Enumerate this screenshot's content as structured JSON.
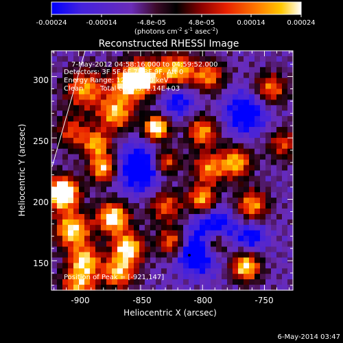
{
  "colorbar": {
    "tick_labels": [
      "-0.00024",
      "-0.00014",
      "-4.8e-05",
      "4.8e-05",
      "0.00014",
      "0.00024"
    ],
    "units_prefix": "(photons cm",
    "units_sup1": "-2",
    "units_mid": " s",
    "units_sup2": "-1",
    "units_suffix": " asec",
    "units_sup3": "-2",
    "units_close": ")"
  },
  "annotations": {
    "time_range": "7-May-2012 04:58:16.000 to 04:59:52.000",
    "detectors": "Detectors: 3F 5F 6F 7F 8F 9F, Att 0",
    "energy": "Energy Range: 12.0 - 25.0 keV",
    "method": "Clean",
    "counts": "Total counts: 1.14E+03",
    "peak": "Position of Peak = [-921,147]"
  },
  "footer": {
    "timestamp": "6-May-2014 03:47"
  },
  "chart_data": {
    "type": "heatmap",
    "title": "Reconstructed RHESSI Image",
    "xlabel": "Heliocentric X (arcsec)",
    "ylabel": "Heliocentric Y (arcsec)",
    "xlim": [
      -922,
      -727
    ],
    "ylim": [
      126,
      321
    ],
    "x_ticks": [
      -900,
      -850,
      -800,
      -750
    ],
    "y_ticks": [
      150,
      200,
      250,
      300
    ],
    "colorbar_range": [
      -0.00024,
      0.00024
    ],
    "peak_position": [
      -921,
      147
    ],
    "colormap_stops": [
      "#0000ff",
      "#4422dd",
      "#6a2cb8",
      "#3c0a28",
      "#000000",
      "#8c0000",
      "#e82000",
      "#ff7800",
      "#ffc800",
      "#ffffff"
    ]
  }
}
